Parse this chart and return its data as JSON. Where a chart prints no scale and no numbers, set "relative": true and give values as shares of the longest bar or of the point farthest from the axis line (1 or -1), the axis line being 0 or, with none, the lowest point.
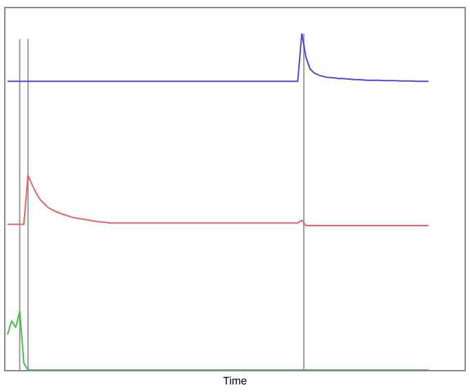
{
  "chart_data": {
    "type": "line",
    "relative": true,
    "xlabel": "Time",
    "marker": "none",
    "line_style": "solid",
    "categories": [
      null,
      null,
      null,
      null,
      null,
      null,
      null,
      null,
      null,
      null,
      null,
      null,
      null,
      null,
      null,
      null,
      null,
      null,
      null,
      null,
      null,
      null,
      null,
      null,
      null,
      null,
      null,
      null,
      null,
      null,
      null,
      null,
      null,
      null,
      null,
      null,
      null,
      null,
      null,
      null,
      null,
      null,
      null,
      null,
      null,
      null,
      null,
      null,
      null,
      null,
      null,
      null,
      null,
      null,
      null,
      null,
      null,
      null,
      null,
      null,
      null,
      null,
      null,
      null,
      null,
      null,
      null,
      null,
      null,
      null,
      null,
      null,
      null,
      null,
      null,
      null,
      null,
      null,
      null,
      null,
      null,
      null,
      null,
      null,
      null,
      null,
      null,
      null,
      null,
      null,
      null,
      null,
      null,
      null,
      null,
      null,
      null,
      null,
      null,
      null,
      null,
      null,
      null,
      null
    ],
    "series": [
      {
        "color": "#4848d8",
        "values": [
          0.858,
          0.858,
          0.858,
          0.858,
          0.858,
          0.858,
          0.858,
          0.858,
          0.858,
          0.858,
          0.858,
          0.858,
          0.858,
          0.858,
          0.858,
          0.858,
          0.858,
          0.858,
          0.858,
          0.858,
          0.858,
          0.858,
          0.858,
          0.858,
          0.858,
          0.858,
          0.858,
          0.858,
          0.858,
          0.858,
          0.858,
          0.858,
          0.858,
          0.858,
          0.858,
          0.858,
          0.858,
          0.858,
          0.858,
          0.858,
          0.858,
          0.858,
          0.858,
          0.858,
          0.858,
          0.858,
          0.858,
          0.858,
          0.858,
          0.858,
          0.858,
          0.858,
          0.858,
          0.858,
          0.858,
          0.858,
          0.858,
          0.858,
          0.858,
          0.858,
          0.858,
          0.858,
          0.858,
          0.858,
          0.858,
          0.858,
          0.858,
          0.858,
          0.858,
          0.858,
          0.858,
          0.858,
          1.0,
          0.93,
          0.895,
          0.883,
          0.877,
          0.873,
          0.87,
          0.869,
          0.868,
          0.866,
          0.866,
          0.865,
          0.864,
          0.863,
          0.863,
          0.862,
          0.861,
          0.861,
          0.861,
          0.861,
          0.86,
          0.86,
          0.86,
          0.86,
          0.859,
          0.859,
          0.859,
          0.859,
          0.858,
          0.858,
          0.858,
          0.858
        ]
      },
      {
        "color": "#e86060",
        "values": [
          0.433,
          0.433,
          0.433,
          0.433,
          0.433,
          0.579,
          0.551,
          0.526,
          0.506,
          0.494,
          0.482,
          0.476,
          0.47,
          0.465,
          0.461,
          0.457,
          0.453,
          0.451,
          0.449,
          0.447,
          0.445,
          0.443,
          0.441,
          0.44,
          0.439,
          0.437,
          0.437,
          0.437,
          0.437,
          0.437,
          0.437,
          0.437,
          0.437,
          0.437,
          0.437,
          0.437,
          0.437,
          0.437,
          0.437,
          0.437,
          0.437,
          0.437,
          0.437,
          0.437,
          0.437,
          0.437,
          0.437,
          0.437,
          0.437,
          0.437,
          0.437,
          0.437,
          0.437,
          0.437,
          0.437,
          0.437,
          0.437,
          0.437,
          0.437,
          0.437,
          0.437,
          0.437,
          0.437,
          0.437,
          0.437,
          0.437,
          0.437,
          0.437,
          0.437,
          0.437,
          0.437,
          0.437,
          0.445,
          0.429,
          0.429,
          0.429,
          0.429,
          0.429,
          0.429,
          0.429,
          0.429,
          0.429,
          0.429,
          0.429,
          0.429,
          0.429,
          0.429,
          0.429,
          0.429,
          0.429,
          0.429,
          0.429,
          0.429,
          0.429,
          0.429,
          0.429,
          0.429,
          0.429,
          0.429,
          0.429,
          0.429,
          0.429,
          0.429,
          0.429
        ]
      },
      {
        "color": "#40c040",
        "values": [
          0.105,
          0.146,
          0.126,
          0.174,
          0.02,
          0,
          0,
          0,
          0,
          0,
          0,
          0,
          0,
          0,
          0,
          0,
          0,
          0,
          0,
          0,
          0,
          0,
          0,
          0,
          0,
          0,
          0,
          0,
          0,
          0,
          0,
          0,
          0,
          0,
          0,
          0,
          0,
          0,
          0,
          0,
          0,
          0,
          0,
          0,
          0,
          0,
          0,
          0,
          0,
          0,
          0,
          0,
          0,
          0,
          0,
          0,
          0,
          0,
          0,
          0,
          0,
          0,
          0,
          0,
          0,
          0,
          0,
          0,
          0,
          0,
          0,
          0,
          0,
          0,
          0,
          0,
          0,
          0,
          0,
          0,
          0,
          0,
          0,
          0,
          0,
          0,
          0,
          0,
          0,
          0,
          0,
          0,
          0,
          0,
          0,
          0,
          0,
          0,
          0,
          0,
          0,
          0,
          0,
          0
        ]
      }
    ]
  }
}
